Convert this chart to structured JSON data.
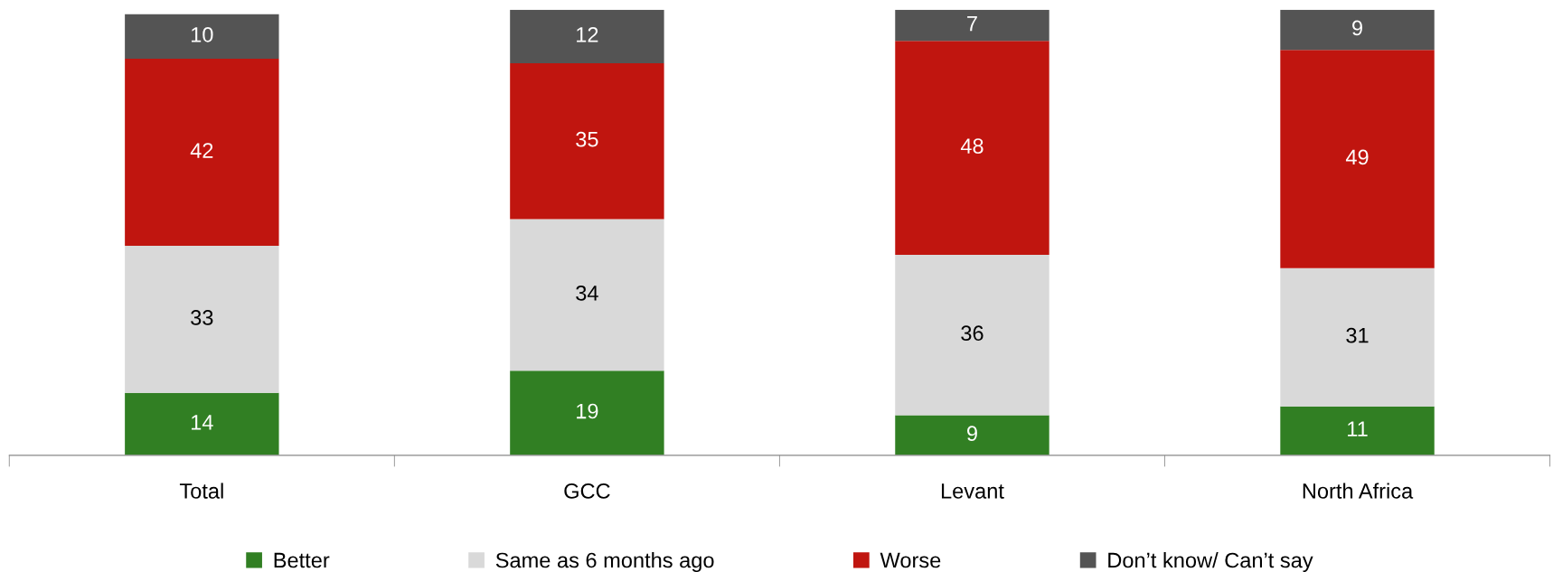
{
  "chart_data": {
    "type": "bar",
    "stacked": true,
    "data_labels": true,
    "legend": "bottom",
    "categories": [
      "Total",
      "GCC",
      "Levant",
      "North Africa"
    ],
    "series": [
      {
        "name": "Better",
        "color": "#317f23",
        "values": [
          14,
          19,
          9,
          11
        ]
      },
      {
        "name": "Same as 6 months ago",
        "color": "#d9d9d9",
        "values": [
          33,
          34,
          36,
          31
        ]
      },
      {
        "name": "Worse",
        "color": "#c0150f",
        "values": [
          42,
          35,
          48,
          49
        ]
      },
      {
        "name": "Don’t know/ Can’t say",
        "color": "#545454",
        "values": [
          10,
          12,
          7,
          9
        ]
      }
    ]
  }
}
